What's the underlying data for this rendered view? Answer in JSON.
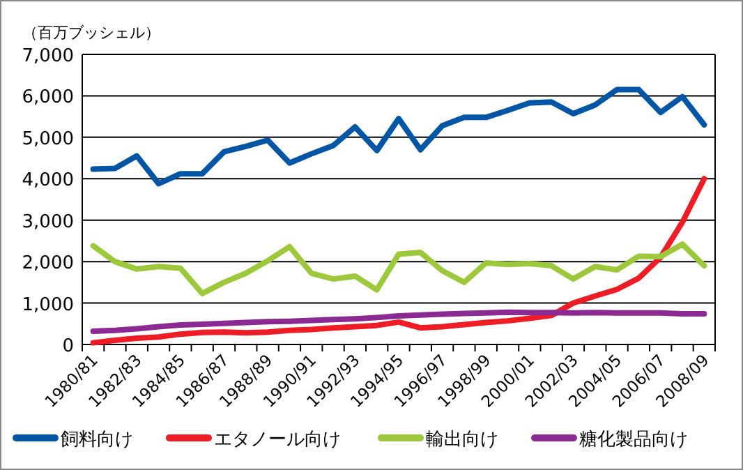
{
  "chart_data": {
    "type": "line",
    "ylabel": "（百万ブッシェル）",
    "categories": [
      "1980/81",
      null,
      "1982/83",
      null,
      "1984/85",
      null,
      "1986/87",
      null,
      "1988/89",
      null,
      "1990/91",
      null,
      "1992/93",
      null,
      "1994/95",
      null,
      "1996/97",
      null,
      "1998/99",
      null,
      "2000/01",
      null,
      "2002/03",
      null,
      "2004/05",
      null,
      "2006/07",
      null,
      "2008/09"
    ],
    "ylim": [
      0,
      7000
    ],
    "yticks": [
      {
        "value": 0,
        "label": "0"
      },
      {
        "value": 1000,
        "label": "1,000"
      },
      {
        "value": 2000,
        "label": "2,000"
      },
      {
        "value": 3000,
        "label": "3,000"
      },
      {
        "value": 4000,
        "label": "4,000"
      },
      {
        "value": 5000,
        "label": "5,000"
      },
      {
        "value": 6000,
        "label": "6,000"
      },
      {
        "value": 7000,
        "label": "7,000"
      }
    ],
    "grid": "y",
    "legend": "bottom",
    "marker": "none",
    "line_style": "solid",
    "series": [
      {
        "name": "飼料向け",
        "color": "#0055a5",
        "values": [
          4230,
          4250,
          4550,
          3880,
          4120,
          4120,
          4650,
          4780,
          4930,
          4380,
          4600,
          4800,
          5250,
          4680,
          5450,
          4700,
          5280,
          5480,
          5480,
          5650,
          5830,
          5850,
          5570,
          5780,
          6150,
          6150,
          5600,
          5980,
          5300
        ]
      },
      {
        "name": "エタノール向け",
        "color": "#ee1c25",
        "values": [
          40,
          100,
          150,
          180,
          250,
          290,
          300,
          280,
          300,
          340,
          360,
          400,
          430,
          460,
          540,
          400,
          430,
          480,
          530,
          570,
          630,
          700,
          1000,
          1170,
          1330,
          1600,
          2100,
          2950,
          4000
        ]
      },
      {
        "name": "輸出向け",
        "color": "#9dc83c",
        "values": [
          2380,
          2000,
          1820,
          1880,
          1840,
          1230,
          1500,
          1720,
          2020,
          2360,
          1720,
          1580,
          1650,
          1320,
          2180,
          2220,
          1780,
          1500,
          1970,
          1930,
          1950,
          1900,
          1580,
          1880,
          1800,
          2130,
          2120,
          2420,
          1900
        ]
      },
      {
        "name": "糖化製品向け",
        "color": "#8b2a92",
        "values": [
          320,
          340,
          380,
          430,
          470,
          490,
          510,
          530,
          550,
          560,
          580,
          600,
          620,
          650,
          690,
          710,
          730,
          750,
          760,
          780,
          770,
          770,
          760,
          770,
          760,
          760,
          760,
          740,
          740
        ]
      }
    ]
  }
}
